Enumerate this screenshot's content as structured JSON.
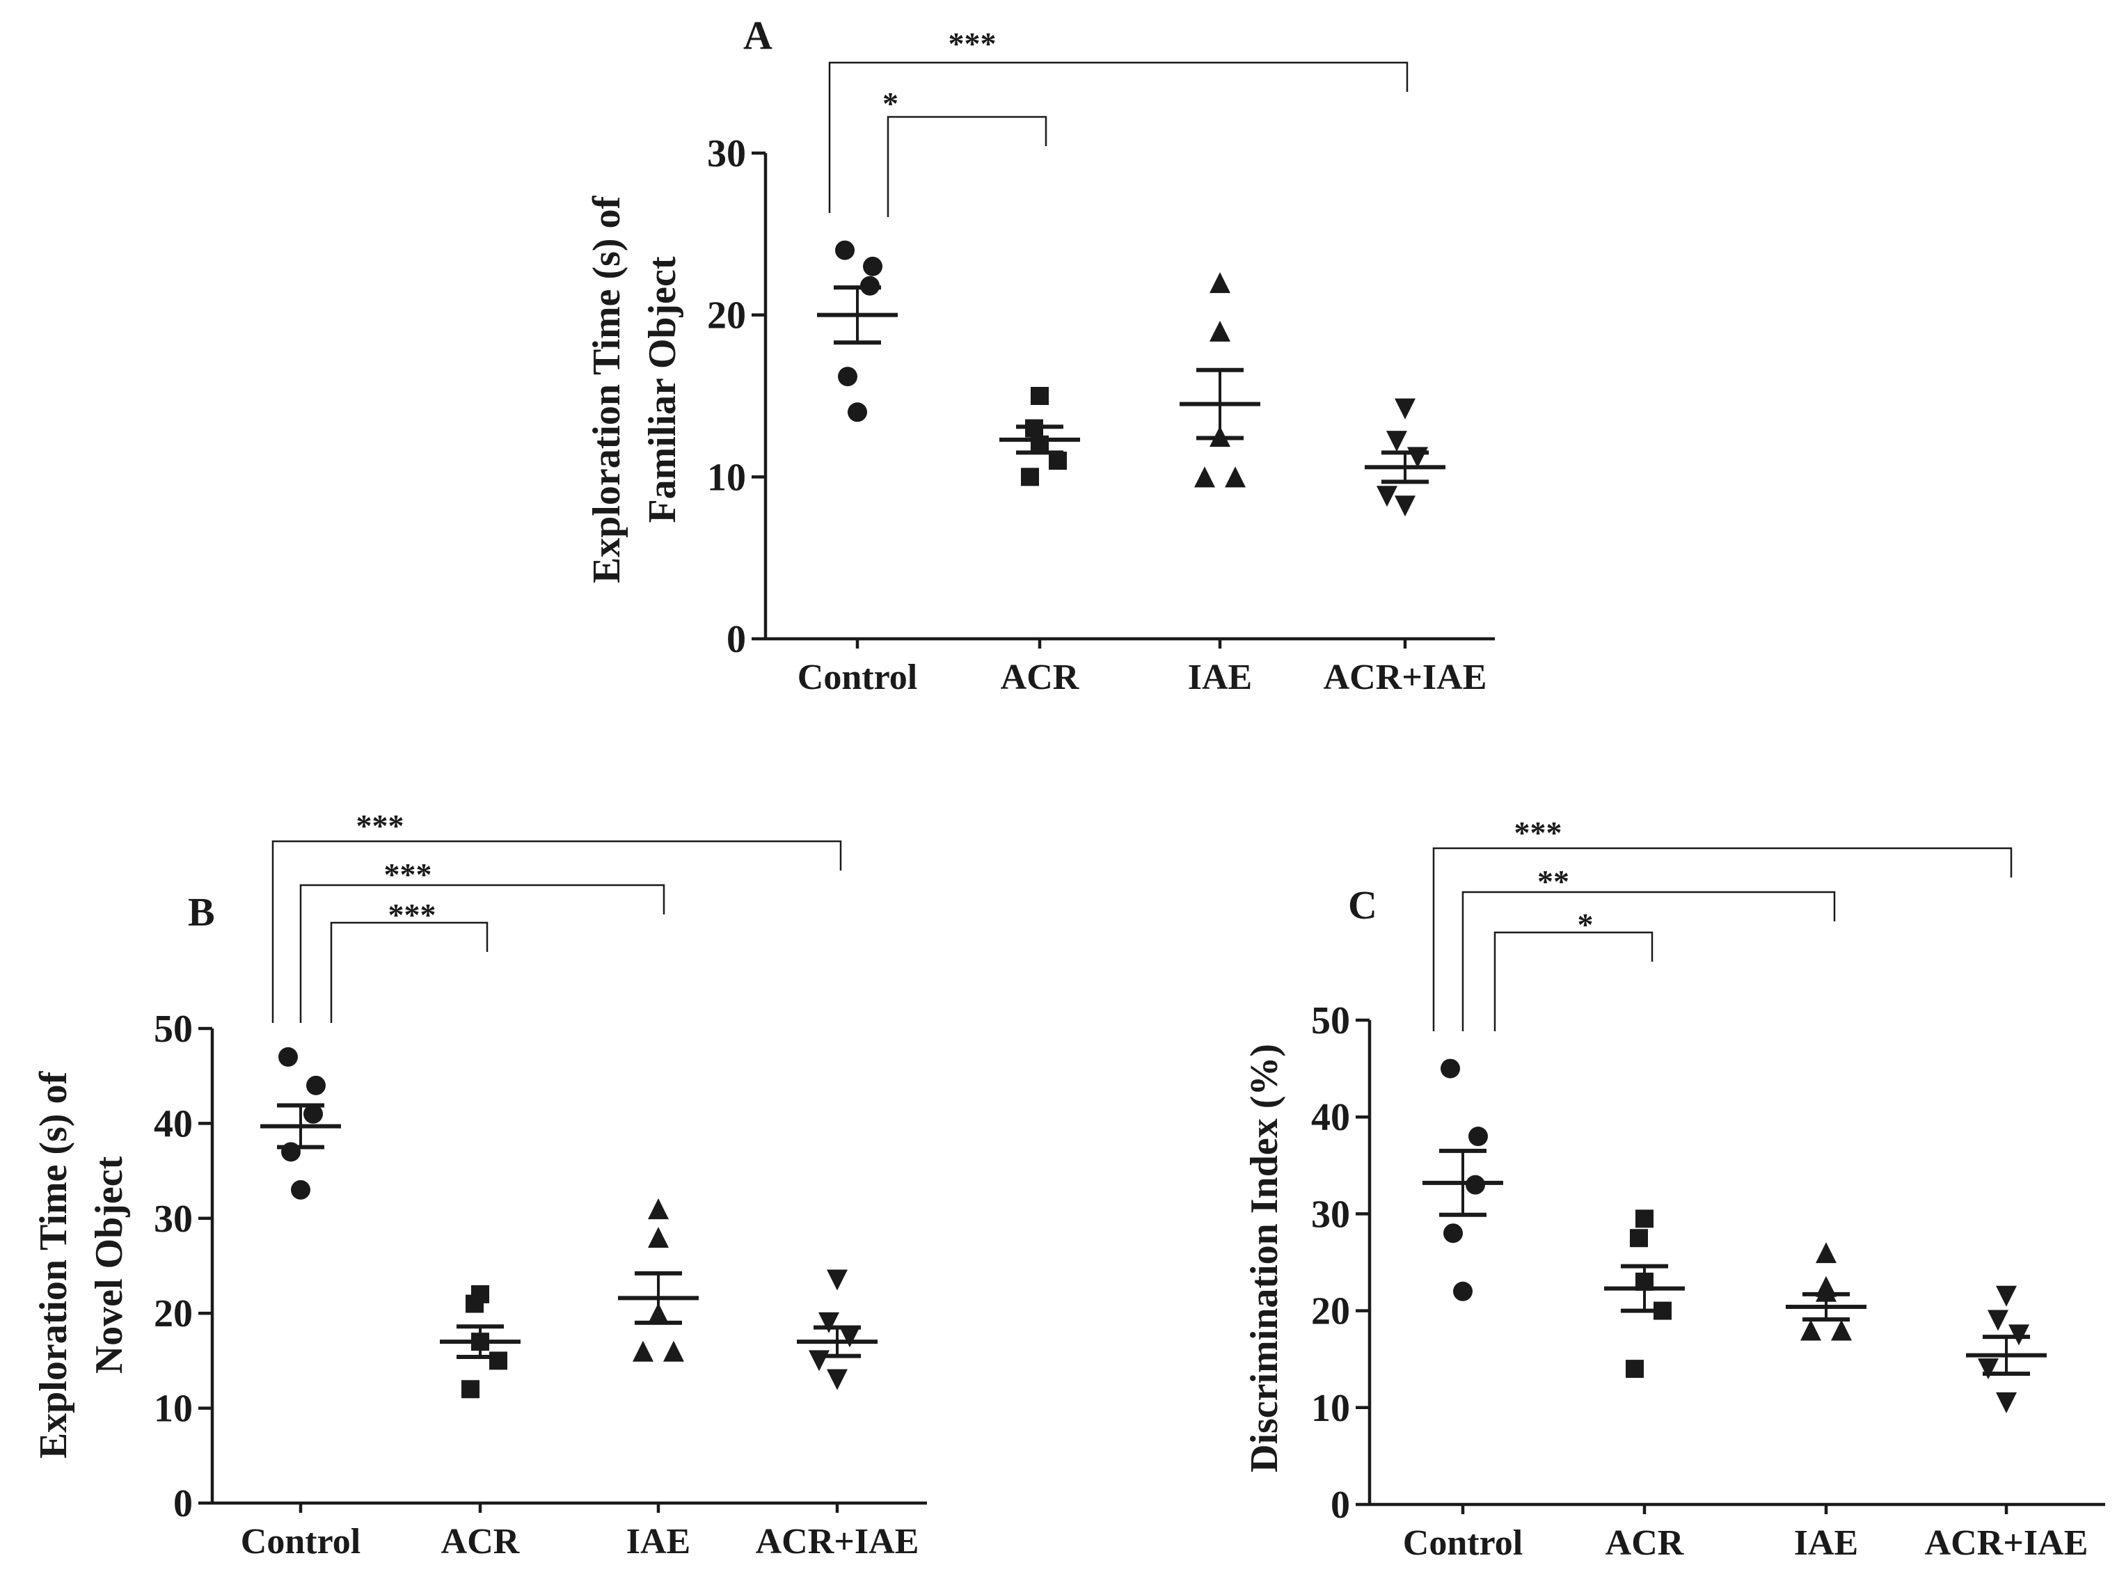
{
  "chart_data": [
    {
      "panel": "A",
      "type": "scatter",
      "ylabel_lines": [
        "Exploration Time (s) of",
        "Familiar Object"
      ],
      "categories": [
        "Control",
        "ACR",
        "IAE",
        "ACR+IAE"
      ],
      "markers": [
        "circle",
        "square",
        "triangle-up",
        "triangle-down"
      ],
      "ylim": [
        0,
        30
      ],
      "yticks": [
        0,
        10,
        20,
        30
      ],
      "points": [
        [
          24,
          23,
          21.8,
          16.2,
          14
        ],
        [
          15,
          13,
          12,
          11,
          10
        ],
        [
          22,
          19,
          12.5,
          10,
          10
        ],
        [
          14.2,
          12.2,
          11.2,
          8.8,
          8.2
        ]
      ],
      "mean": [
        20,
        12.3,
        14.5,
        10.6
      ],
      "sem": [
        1.7,
        0.8,
        2.1,
        0.9
      ],
      "significance": [
        {
          "from": "Control",
          "to": "ACR",
          "stars": "*"
        },
        {
          "from": "Control",
          "to": "ACR+IAE",
          "stars": "***"
        }
      ]
    },
    {
      "panel": "B",
      "type": "scatter",
      "ylabel_lines": [
        "Exploration Time (s) of",
        "Novel Object"
      ],
      "categories": [
        "Control",
        "ACR",
        "IAE",
        "ACR+IAE"
      ],
      "markers": [
        "circle",
        "square",
        "triangle-up",
        "triangle-down"
      ],
      "ylim": [
        0,
        50
      ],
      "yticks": [
        0,
        10,
        20,
        30,
        40,
        50
      ],
      "points": [
        [
          47,
          44,
          41,
          37,
          33
        ],
        [
          22,
          21,
          17,
          15,
          12
        ],
        [
          31,
          28,
          20,
          16,
          16
        ],
        [
          23.5,
          19,
          17.5,
          15,
          13
        ]
      ],
      "mean": [
        39.7,
        17,
        21.6,
        17
      ],
      "sem": [
        2.2,
        1.6,
        2.6,
        1.5
      ],
      "significance": [
        {
          "from": "Control",
          "to": "ACR",
          "stars": "***"
        },
        {
          "from": "Control",
          "to": "IAE",
          "stars": "***"
        },
        {
          "from": "Control",
          "to": "ACR+IAE",
          "stars": "***"
        }
      ]
    },
    {
      "panel": "C",
      "type": "scatter",
      "ylabel_lines": [
        "Discrimination Index (%)"
      ],
      "categories": [
        "Control",
        "ACR",
        "IAE",
        "ACR+IAE"
      ],
      "markers": [
        "circle",
        "square",
        "triangle-up",
        "triangle-down"
      ],
      "ylim": [
        0,
        50
      ],
      "yticks": [
        0,
        10,
        20,
        30,
        40,
        50
      ],
      "points": [
        [
          45,
          38,
          33,
          28,
          22
        ],
        [
          29.5,
          27.5,
          23,
          20,
          14
        ],
        [
          26,
          22.5,
          22,
          18,
          18
        ],
        [
          21.5,
          19,
          17.5,
          14,
          10.5
        ]
      ],
      "mean": [
        33.2,
        22.3,
        20.4,
        15.4
      ],
      "sem": [
        3.3,
        2.3,
        1.3,
        1.9
      ],
      "significance": [
        {
          "from": "Control",
          "to": "ACR",
          "stars": "*"
        },
        {
          "from": "Control",
          "to": "IAE",
          "stars": "**"
        },
        {
          "from": "Control",
          "to": "ACR+IAE",
          "stars": "***"
        }
      ]
    }
  ]
}
